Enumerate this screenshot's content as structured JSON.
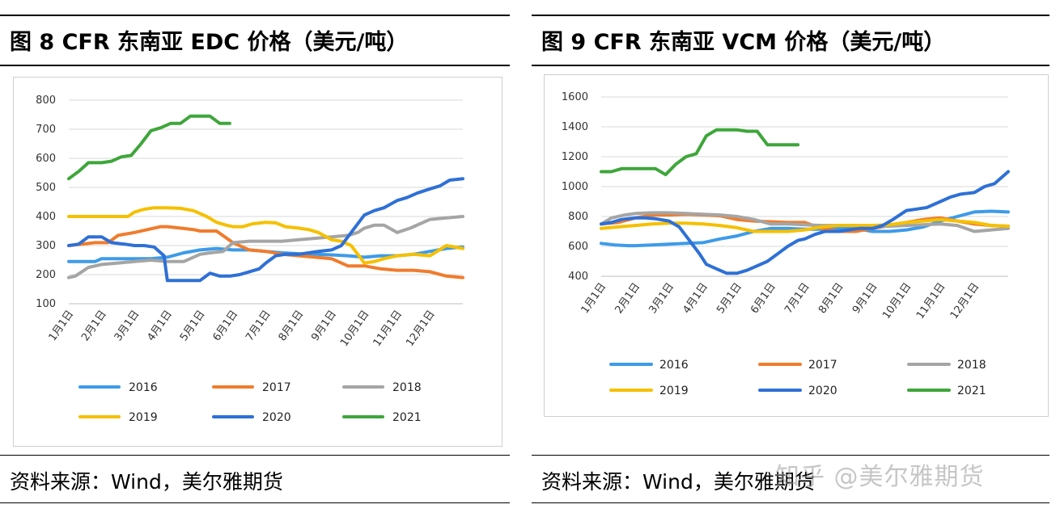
{
  "panels": [
    {
      "title": "图 8 CFR 东南亚  EDC 价格（美元/吨）",
      "source": "资料来源：Wind，美尔雅期货"
    },
    {
      "title": "图 9 CFR 东南亚  VCM 价格（美元/吨）",
      "source": "资料来源：Wind，美尔雅期货"
    }
  ],
  "watermark": "知乎 @美尔雅期货",
  "chart_data": [
    {
      "type": "line",
      "title": "图 8 CFR 东南亚  EDC 价格（美元/吨）",
      "xlabel": "",
      "ylabel": "",
      "x_ticks": [
        "1月1日",
        "2月1日",
        "3月1日",
        "4月1日",
        "5月1日",
        "6月1日",
        "7月1日",
        "8月1日",
        "9月1日",
        "10月1日",
        "11月1日",
        "12月1日"
      ],
      "x_range": [
        0,
        12
      ],
      "y_ticks": [
        "100",
        "200",
        "300",
        "400",
        "500",
        "600",
        "700",
        "800"
      ],
      "ylim": [
        100,
        800
      ],
      "grid": true,
      "legend": "bottom",
      "series": [
        {
          "name": "2016",
          "color": "#3d9be9",
          "x": [
            0,
            0.4,
            0.8,
            1,
            1.5,
            2,
            2.5,
            3,
            3.5,
            4,
            4.5,
            5,
            5.5,
            6,
            6.5,
            7,
            7.5,
            8,
            8.5,
            9,
            9.5,
            10,
            10.5,
            11,
            11.5,
            12
          ],
          "y": [
            245,
            245,
            245,
            255,
            255,
            255,
            255,
            260,
            275,
            285,
            290,
            285,
            285,
            280,
            275,
            272,
            270,
            268,
            265,
            260,
            265,
            265,
            270,
            280,
            290,
            295
          ]
        },
        {
          "name": "2017",
          "color": "#f07c2c",
          "x": [
            0,
            0.4,
            0.8,
            1.2,
            1.5,
            2,
            2.4,
            2.8,
            3,
            3.4,
            3.8,
            4,
            4.5,
            5,
            5.5,
            6,
            6.5,
            7,
            7.5,
            8,
            8.5,
            9,
            9.5,
            10,
            10.5,
            11,
            11.5,
            12
          ],
          "y": [
            300,
            305,
            310,
            310,
            335,
            345,
            355,
            365,
            365,
            360,
            355,
            350,
            350,
            310,
            285,
            280,
            270,
            265,
            260,
            255,
            230,
            230,
            220,
            215,
            215,
            210,
            195,
            190
          ]
        },
        {
          "name": "2018",
          "color": "#a5a5a5",
          "x": [
            0,
            0.2,
            0.6,
            1,
            1.5,
            2,
            2.5,
            3,
            3.5,
            4,
            4.3,
            4.7,
            5,
            5.5,
            6,
            6.5,
            7,
            7.5,
            8,
            8.5,
            8.8,
            9,
            9.3,
            9.6,
            10,
            10.4,
            10.8,
            11,
            11.5,
            12
          ],
          "y": [
            190,
            195,
            225,
            235,
            240,
            245,
            250,
            245,
            245,
            270,
            275,
            280,
            310,
            315,
            315,
            315,
            320,
            325,
            330,
            335,
            345,
            360,
            370,
            370,
            345,
            360,
            380,
            390,
            395,
            400
          ]
        },
        {
          "name": "2019",
          "color": "#f5c000",
          "x": [
            0,
            0.5,
            1,
            1.4,
            1.8,
            2,
            2.3,
            2.6,
            3,
            3.4,
            3.8,
            4,
            4.2,
            4.5,
            4.8,
            5,
            5.3,
            5.6,
            6,
            6.3,
            6.6,
            7,
            7.3,
            7.6,
            8,
            8.3,
            8.6,
            9,
            9.3,
            9.6,
            10,
            10.5,
            11,
            11.5,
            12
          ],
          "y": [
            400,
            400,
            400,
            400,
            400,
            415,
            425,
            430,
            430,
            428,
            420,
            410,
            400,
            380,
            370,
            365,
            365,
            375,
            380,
            378,
            365,
            360,
            355,
            345,
            320,
            315,
            300,
            240,
            245,
            255,
            265,
            270,
            265,
            300,
            290
          ]
        },
        {
          "name": "2020",
          "color": "#2e70d6",
          "x": [
            0,
            0.3,
            0.6,
            1,
            1.3,
            1.7,
            2,
            2.3,
            2.6,
            2.9,
            3,
            3.2,
            3.5,
            3.8,
            4,
            4.3,
            4.6,
            4.9,
            5.2,
            5.5,
            5.8,
            6,
            6.3,
            6.6,
            7,
            7.3,
            7.6,
            8,
            8.3,
            8.6,
            9,
            9.3,
            9.6,
            10,
            10.3,
            10.6,
            11,
            11.3,
            11.6,
            12
          ],
          "y": [
            300,
            305,
            330,
            330,
            310,
            305,
            300,
            300,
            295,
            265,
            180,
            180,
            180,
            180,
            180,
            205,
            195,
            195,
            200,
            210,
            220,
            240,
            265,
            270,
            270,
            275,
            280,
            285,
            300,
            345,
            405,
            420,
            430,
            455,
            465,
            480,
            495,
            505,
            525,
            530
          ]
        },
        {
          "name": "2021",
          "color": "#3ea63a",
          "x": [
            0,
            0.3,
            0.6,
            1,
            1.3,
            1.6,
            1.9,
            2.2,
            2.5,
            2.8,
            3.1,
            3.4,
            3.7,
            4,
            4.3,
            4.6,
            4.9
          ],
          "y": [
            530,
            555,
            585,
            585,
            590,
            605,
            610,
            650,
            695,
            705,
            720,
            720,
            745,
            745,
            745,
            720,
            720
          ]
        }
      ]
    },
    {
      "type": "line",
      "title": "图 9 CFR 东南亚  VCM 价格（美元/吨）",
      "xlabel": "",
      "ylabel": "",
      "x_ticks": [
        "1月1日",
        "2月1日",
        "3月1日",
        "4月1日",
        "5月1日",
        "6月1日",
        "7月1日",
        "8月1日",
        "9月1日",
        "10月1日",
        "11月1日",
        "12月1日"
      ],
      "x_range": [
        0,
        12
      ],
      "y_ticks": [
        "400",
        "600",
        "800",
        "1000",
        "1200",
        "1400",
        "1600"
      ],
      "ylim": [
        400,
        1600
      ],
      "grid": true,
      "legend": "bottom",
      "series": [
        {
          "name": "2016",
          "color": "#3d9be9",
          "x": [
            0,
            0.4,
            0.8,
            1,
            1.5,
            2,
            2.5,
            3,
            3.5,
            4,
            4.5,
            5,
            5.5,
            6,
            6.5,
            7,
            7.5,
            8,
            8.5,
            9,
            9.5,
            10,
            10.5,
            11,
            11.5,
            12
          ],
          "y": [
            620,
            610,
            605,
            605,
            610,
            615,
            620,
            625,
            650,
            670,
            700,
            720,
            720,
            715,
            715,
            720,
            720,
            700,
            700,
            710,
            730,
            770,
            800,
            830,
            835,
            830
          ]
        },
        {
          "name": "2017",
          "color": "#f07c2c",
          "x": [
            0,
            0.5,
            1,
            1.5,
            2,
            2.5,
            3,
            3.5,
            4,
            4.5,
            5,
            5.5,
            6,
            6.5,
            7,
            7.5,
            8,
            8.5,
            9,
            9.5,
            10,
            10.5,
            11,
            11.5,
            12
          ],
          "y": [
            750,
            760,
            790,
            810,
            810,
            815,
            810,
            805,
            780,
            770,
            765,
            760,
            760,
            720,
            700,
            700,
            720,
            740,
            760,
            780,
            790,
            770,
            750,
            740,
            735
          ]
        },
        {
          "name": "2018",
          "color": "#a5a5a5",
          "x": [
            0,
            0.3,
            0.7,
            1,
            1.5,
            2,
            2.5,
            3,
            3.5,
            4,
            4.5,
            5,
            5.5,
            6,
            6.5,
            7,
            7.5,
            8,
            8.5,
            9,
            9.5,
            10,
            10.5,
            11,
            11.5,
            12
          ],
          "y": [
            750,
            790,
            810,
            820,
            825,
            825,
            820,
            815,
            810,
            800,
            780,
            750,
            750,
            745,
            740,
            740,
            740,
            735,
            735,
            740,
            745,
            750,
            740,
            700,
            710,
            720
          ]
        },
        {
          "name": "2019",
          "color": "#f5c000",
          "x": [
            0,
            0.5,
            1,
            1.5,
            2,
            2.5,
            3,
            3.5,
            4,
            4.5,
            5,
            5.5,
            6,
            6.5,
            7,
            7.5,
            8,
            8.5,
            9,
            9.5,
            10,
            10.5,
            11,
            11.5,
            12
          ],
          "y": [
            720,
            730,
            740,
            750,
            755,
            755,
            750,
            740,
            725,
            700,
            700,
            700,
            710,
            730,
            740,
            740,
            740,
            745,
            760,
            770,
            780,
            770,
            760,
            740,
            735
          ]
        },
        {
          "name": "2020",
          "color": "#2e70d6",
          "x": [
            0,
            0.3,
            0.6,
            1,
            1.3,
            1.6,
            2,
            2.3,
            2.6,
            2.9,
            3.1,
            3.4,
            3.7,
            4,
            4.3,
            4.6,
            4.9,
            5.2,
            5.5,
            5.8,
            6,
            6.3,
            6.6,
            7,
            7.3,
            7.6,
            8,
            8.3,
            8.6,
            9,
            9.3,
            9.6,
            10,
            10.3,
            10.6,
            11,
            11.3,
            11.6,
            12
          ],
          "y": [
            750,
            760,
            780,
            790,
            790,
            785,
            770,
            730,
            640,
            550,
            480,
            450,
            420,
            420,
            440,
            470,
            500,
            550,
            600,
            640,
            650,
            680,
            700,
            700,
            710,
            720,
            720,
            740,
            780,
            840,
            850,
            860,
            900,
            930,
            950,
            960,
            1000,
            1020,
            1100
          ]
        },
        {
          "name": "2021",
          "color": "#3ea63a",
          "x": [
            0,
            0.3,
            0.6,
            1,
            1.3,
            1.6,
            1.9,
            2.2,
            2.5,
            2.8,
            3.1,
            3.4,
            3.7,
            4,
            4.3,
            4.6,
            4.9,
            5.2,
            5.5,
            5.8
          ],
          "y": [
            1100,
            1100,
            1120,
            1120,
            1120,
            1120,
            1080,
            1150,
            1200,
            1220,
            1340,
            1380,
            1380,
            1380,
            1370,
            1370,
            1280,
            1280,
            1280,
            1280
          ]
        }
      ]
    }
  ]
}
